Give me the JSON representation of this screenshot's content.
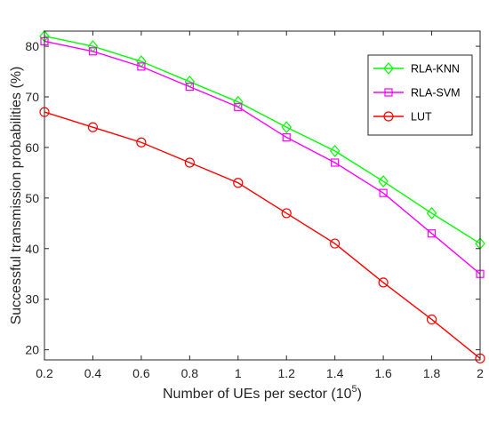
{
  "chart_data": {
    "type": "line",
    "title": "",
    "xlabel": "Number of UEs per sector (10",
    "xlabel_sup": "5",
    "xlabel_close": ")",
    "ylabel": "Successful transmission probabilities (%)",
    "xlim": [
      0.2,
      2
    ],
    "ylim": [
      18,
      83
    ],
    "xticks": [
      0.2,
      0.4,
      0.6,
      0.8,
      1,
      1.2,
      1.4,
      1.6,
      1.8,
      2
    ],
    "xtick_labels": [
      "0.2",
      "0.4",
      "0.6",
      "0.8",
      "1",
      "1.2",
      "1.4",
      "1.6",
      "1.8",
      "2"
    ],
    "yticks": [
      20,
      30,
      40,
      50,
      60,
      70,
      80
    ],
    "ytick_labels": [
      "20",
      "30",
      "40",
      "50",
      "60",
      "70",
      "80"
    ],
    "grid": false,
    "legend_position": "top-right",
    "x": [
      0.2,
      0.4,
      0.6,
      0.8,
      1.0,
      1.2,
      1.4,
      1.6,
      1.8,
      2.0
    ],
    "series": [
      {
        "name": "RLA-KNN",
        "color": "#00ff00",
        "marker": "diamond",
        "values": [
          82,
          80,
          77,
          73,
          69,
          64,
          59.3,
          53.3,
          47,
          41
        ]
      },
      {
        "name": "RLA-SVM",
        "color": "#ff00ff",
        "marker": "square",
        "values": [
          81,
          79,
          76,
          72,
          68,
          62,
          57,
          51,
          43,
          35
        ]
      },
      {
        "name": "LUT",
        "color": "#ff0000",
        "marker": "circle",
        "values": [
          67,
          64,
          61,
          57,
          53,
          47,
          41,
          33.3,
          26,
          18.3
        ]
      }
    ]
  }
}
